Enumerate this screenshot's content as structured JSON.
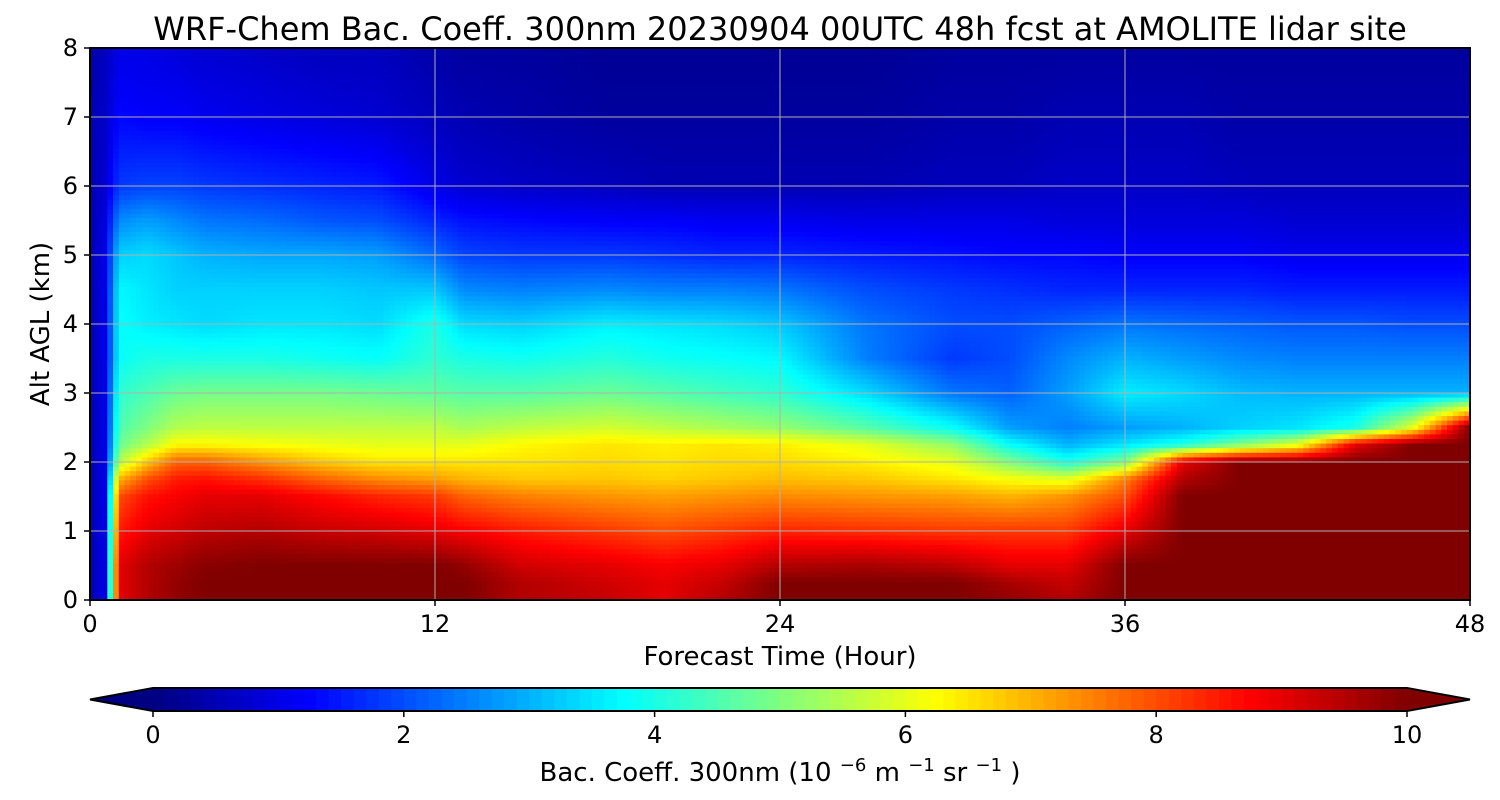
{
  "chart_data": {
    "type": "heatmap",
    "title": "WRF-Chem Bac. Coeff. 300nm  20230904 00UTC 48h fcst at AMOLITE lidar site",
    "xlabel": "Forecast Time (Hour)",
    "ylabel": "Alt AGL (km)",
    "xlim": [
      0,
      48
    ],
    "ylim": [
      0,
      8
    ],
    "x_ticks": [
      "0",
      "12",
      "24",
      "36",
      "48"
    ],
    "y_ticks": [
      "0",
      "1",
      "2",
      "3",
      "4",
      "5",
      "6",
      "7",
      "8"
    ],
    "grid": true,
    "colormap": "jet",
    "colorbar": {
      "orientation": "horizontal",
      "location": "bottom",
      "range": [
        0,
        10
      ],
      "extend": "both",
      "ticks": [
        "0",
        "2",
        "4",
        "6",
        "8",
        "10"
      ],
      "label_main": "Bac. Coeff. 300nm  (10",
      "label_exp1": "−6",
      "label_mid": " m",
      "label_exp2": "−1",
      "label_mid2": " sr",
      "label_exp3": "−1",
      "label_end": ")"
    },
    "x_hours": [
      0,
      0.5,
      1,
      2,
      3,
      4,
      6,
      8,
      10,
      12,
      13,
      15,
      18,
      20,
      22,
      24,
      27,
      30,
      32,
      34,
      36,
      38,
      40,
      42,
      44,
      46,
      48
    ],
    "altitudes_km": [
      0,
      0.25,
      0.5,
      1,
      1.5,
      1.75,
      2,
      2.25,
      2.5,
      3,
      3.5,
      4,
      4.5,
      5,
      5.5,
      6,
      7,
      8
    ],
    "values": [
      [
        0.5,
        1.0,
        9.0,
        9.5,
        9.8,
        10,
        10,
        10,
        10,
        10,
        10,
        9.5,
        9.3,
        9.0,
        9.5,
        10,
        10,
        10,
        9.8,
        9.5,
        10,
        10,
        10,
        10,
        10,
        10,
        10
      ],
      [
        0.5,
        1.0,
        9.0,
        9.5,
        9.8,
        10,
        10,
        10,
        10,
        10,
        10,
        9.5,
        9.2,
        9.0,
        9.3,
        10,
        10,
        10,
        9.6,
        9.3,
        10,
        10,
        10,
        10,
        10,
        10,
        10
      ],
      [
        0.5,
        1.0,
        9.0,
        9.5,
        9.7,
        9.9,
        10,
        10,
        10,
        10,
        9.8,
        9.2,
        9.0,
        8.8,
        9.0,
        9.5,
        9.6,
        9.4,
        9.0,
        9.0,
        10,
        10,
        10,
        10,
        10,
        10,
        10
      ],
      [
        0.5,
        1.0,
        8.5,
        9.0,
        9.2,
        9.4,
        9.5,
        9.3,
        9.2,
        9.0,
        8.8,
        8.5,
        8.2,
        8.0,
        8.2,
        8.4,
        8.3,
        8.2,
        8.2,
        8.2,
        9.0,
        10,
        10,
        10,
        10,
        10,
        10
      ],
      [
        0.5,
        1.0,
        8.0,
        8.6,
        8.8,
        9.0,
        9.0,
        8.7,
        8.4,
        8.2,
        7.8,
        7.5,
        7.3,
        7.2,
        7.3,
        7.4,
        7.3,
        7.2,
        7.0,
        7.3,
        8.0,
        10,
        10,
        10,
        10,
        10,
        10
      ],
      [
        0.5,
        1.0,
        7.0,
        8.0,
        8.5,
        8.6,
        8.3,
        7.8,
        7.4,
        7.2,
        7.0,
        6.8,
        6.8,
        6.7,
        6.8,
        6.9,
        6.8,
        6.5,
        6.2,
        6.0,
        7.5,
        9.5,
        10,
        10,
        10,
        10,
        10
      ],
      [
        0.5,
        1.0,
        5.5,
        6.8,
        7.8,
        7.8,
        7.3,
        6.8,
        6.5,
        6.5,
        6.5,
        6.5,
        6.6,
        6.5,
        6.6,
        6.6,
        6.4,
        6.0,
        5.0,
        4.0,
        5.0,
        9.0,
        10,
        10,
        10,
        10,
        10
      ],
      [
        0.5,
        1.0,
        4.8,
        5.5,
        6.3,
        6.3,
        6.2,
        6.1,
        6.0,
        6.0,
        6.0,
        6.3,
        6.5,
        6.4,
        6.5,
        6.4,
        6.0,
        5.2,
        3.8,
        3.0,
        3.5,
        4.0,
        5.0,
        6.0,
        9.0,
        10,
        10
      ],
      [
        0.5,
        1.0,
        4.5,
        5.0,
        5.5,
        5.6,
        5.6,
        5.6,
        5.6,
        5.6,
        5.4,
        5.6,
        5.8,
        5.6,
        5.4,
        5.2,
        4.6,
        3.8,
        2.8,
        2.5,
        2.8,
        3.0,
        3.3,
        3.5,
        4.0,
        6.0,
        10
      ],
      [
        0.5,
        1.0,
        4.2,
        4.5,
        4.8,
        4.9,
        4.9,
        4.9,
        4.8,
        4.7,
        4.6,
        4.6,
        4.8,
        4.6,
        4.4,
        4.2,
        3.4,
        2.4,
        2.2,
        2.8,
        3.6,
        3.4,
        3.1,
        3.0,
        3.0,
        3.0,
        3.0
      ],
      [
        0.5,
        1.0,
        3.8,
        4.0,
        4.0,
        4.0,
        4.0,
        3.9,
        3.8,
        4.2,
        4.0,
        3.9,
        4.1,
        3.9,
        3.8,
        3.7,
        2.5,
        1.8,
        2.0,
        2.6,
        3.0,
        2.8,
        2.6,
        2.5,
        2.5,
        2.5,
        2.5
      ],
      [
        0.5,
        1.0,
        3.8,
        3.6,
        3.5,
        3.4,
        3.5,
        3.5,
        3.4,
        4.0,
        3.4,
        3.3,
        3.6,
        3.5,
        3.4,
        3.2,
        2.4,
        2.0,
        2.0,
        2.2,
        2.4,
        2.3,
        2.2,
        2.1,
        2.1,
        2.0,
        2.0
      ],
      [
        0.5,
        1.0,
        3.7,
        3.5,
        3.3,
        3.3,
        3.3,
        3.3,
        3.2,
        3.2,
        2.6,
        2.5,
        2.6,
        2.5,
        2.5,
        2.4,
        2.0,
        1.8,
        1.7,
        1.6,
        1.6,
        1.6,
        1.6,
        1.5,
        1.5,
        1.5,
        1.5
      ],
      [
        0.5,
        1.0,
        3.3,
        3.4,
        3.2,
        3.0,
        2.9,
        2.9,
        2.8,
        2.3,
        1.9,
        1.8,
        1.8,
        1.7,
        1.6,
        1.6,
        1.5,
        1.4,
        1.3,
        1.3,
        1.2,
        1.2,
        1.2,
        1.1,
        1.1,
        1.1,
        1.1
      ],
      [
        0.5,
        0.9,
        2.6,
        2.8,
        2.6,
        2.4,
        2.3,
        2.1,
        2.0,
        1.6,
        1.4,
        1.3,
        1.2,
        1.2,
        1.1,
        1.1,
        1.0,
        1.0,
        1.0,
        0.9,
        0.9,
        0.9,
        0.9,
        0.8,
        0.8,
        0.8,
        0.8
      ],
      [
        0.5,
        0.8,
        1.8,
        1.9,
        1.9,
        1.8,
        1.7,
        1.6,
        1.5,
        1.0,
        0.8,
        0.7,
        0.6,
        0.5,
        0.5,
        0.5,
        0.5,
        0.6,
        0.6,
        0.7,
        0.7,
        0.7,
        0.6,
        0.6,
        0.6,
        0.6,
        0.6
      ],
      [
        0.5,
        0.7,
        1.3,
        1.2,
        1.2,
        1.1,
        1.0,
        0.9,
        0.8,
        0.6,
        0.5,
        0.4,
        0.3,
        0.3,
        0.3,
        0.3,
        0.3,
        0.4,
        0.4,
        0.5,
        0.5,
        0.5,
        0.4,
        0.4,
        0.4,
        0.4,
        0.4
      ],
      [
        0.4,
        0.6,
        1.0,
        1.0,
        0.9,
        0.8,
        0.7,
        0.6,
        0.6,
        0.4,
        0.3,
        0.3,
        0.2,
        0.2,
        0.2,
        0.2,
        0.2,
        0.3,
        0.3,
        0.3,
        0.3,
        0.3,
        0.3,
        0.3,
        0.3,
        0.3,
        0.3
      ]
    ]
  }
}
